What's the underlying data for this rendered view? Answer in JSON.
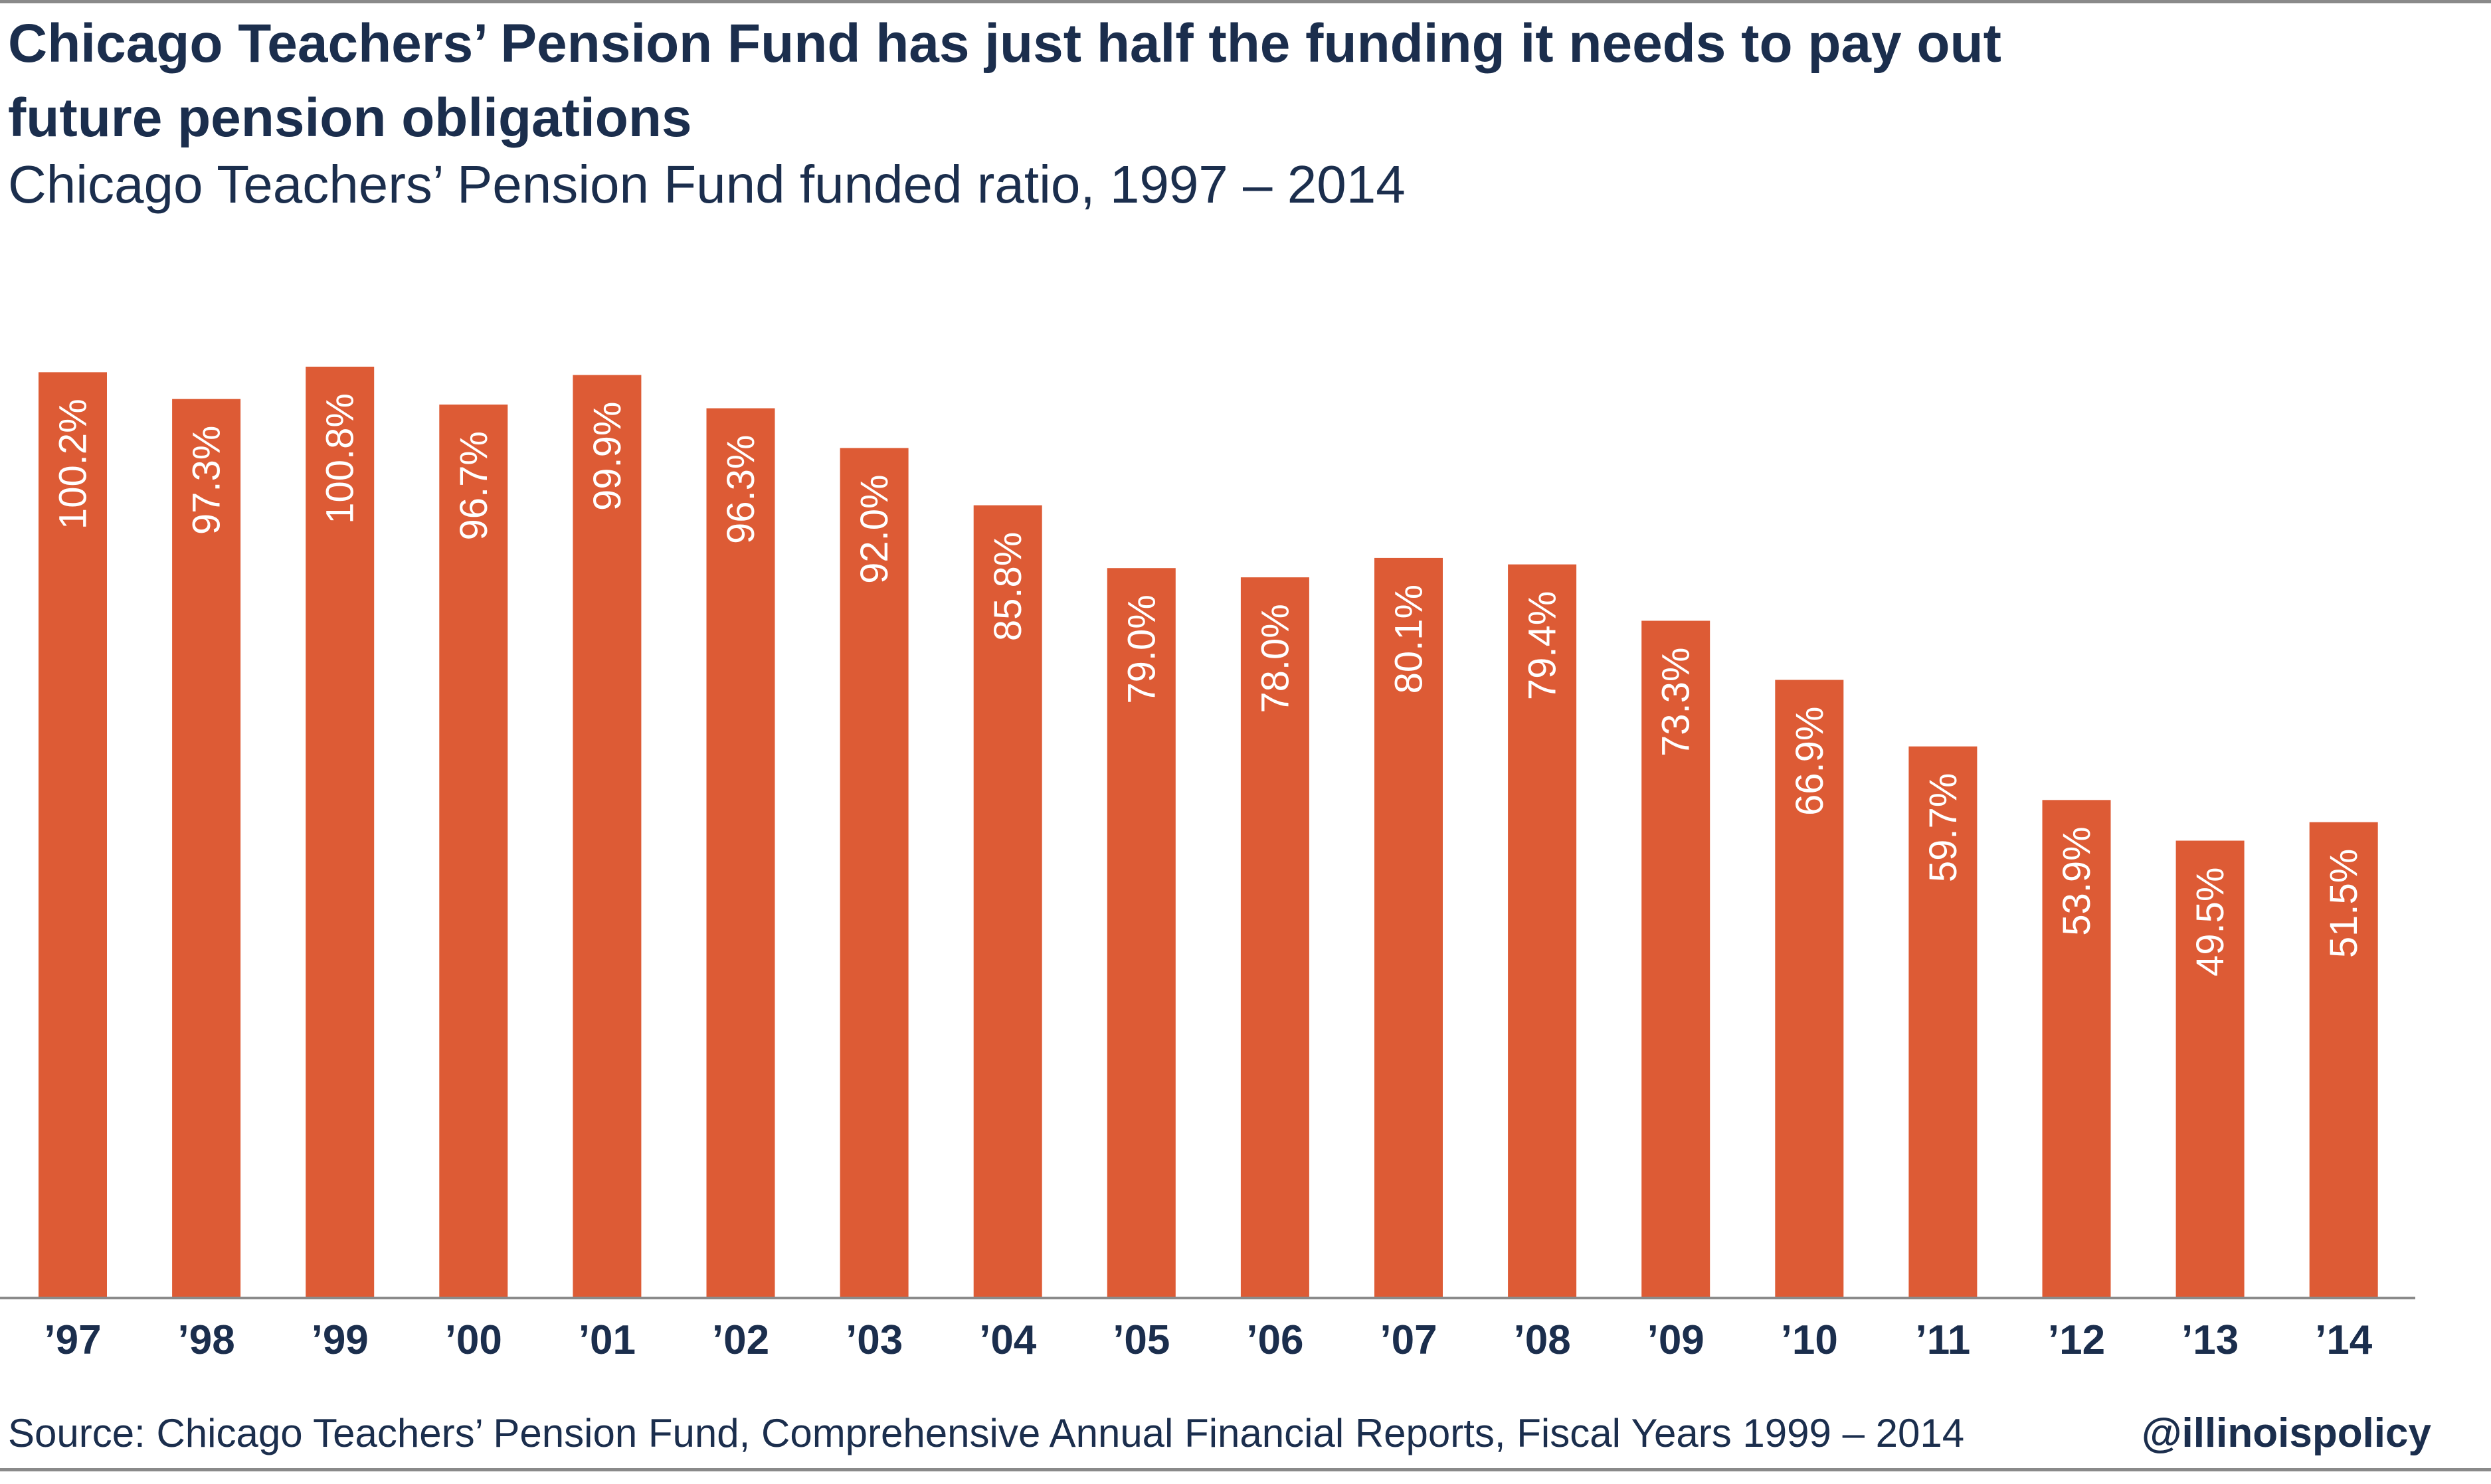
{
  "header": {
    "title": "Chicago Teachers’ Pension Fund has just half the funding it needs to pay out future pension obligations",
    "subtitle": "Chicago Teachers’ Pension Fund funded ratio, 1997 – 2014"
  },
  "footer": {
    "source": "Source: Chicago Teachers’ Pension Fund, Comprehensive Annual Financial Reports, Fiscal Years 1999 – 2014",
    "handle": "@illinoispolicy"
  },
  "colors": {
    "bar": "#dd5b35",
    "text": "#1b2e4d",
    "axis": "#8a8a8a"
  },
  "chart_data": {
    "type": "bar",
    "categories": [
      "’97",
      "’98",
      "’99",
      "’00",
      "’01",
      "’02",
      "’03",
      "’04",
      "’05",
      "’06",
      "’07",
      "’08",
      "’09",
      "’10",
      "’11",
      "’12",
      "’13",
      "’14"
    ],
    "values": [
      100.2,
      97.3,
      100.8,
      96.7,
      99.9,
      96.3,
      92.0,
      85.8,
      79.0,
      78.0,
      80.1,
      79.4,
      73.3,
      66.9,
      59.7,
      53.9,
      49.5,
      51.5
    ],
    "value_labels": [
      "100.2%",
      "97.3%",
      "100.8%",
      "96.7%",
      "99.9%",
      "96.3%",
      "92.0%",
      "85.8%",
      "79.0%",
      "78.0%",
      "80.1%",
      "79.4%",
      "73.3%",
      "66.9%",
      "59.7%",
      "53.9%",
      "49.5%",
      "51.5%"
    ],
    "ylim": [
      0,
      100.8
    ],
    "grid": false,
    "legend": "none"
  }
}
